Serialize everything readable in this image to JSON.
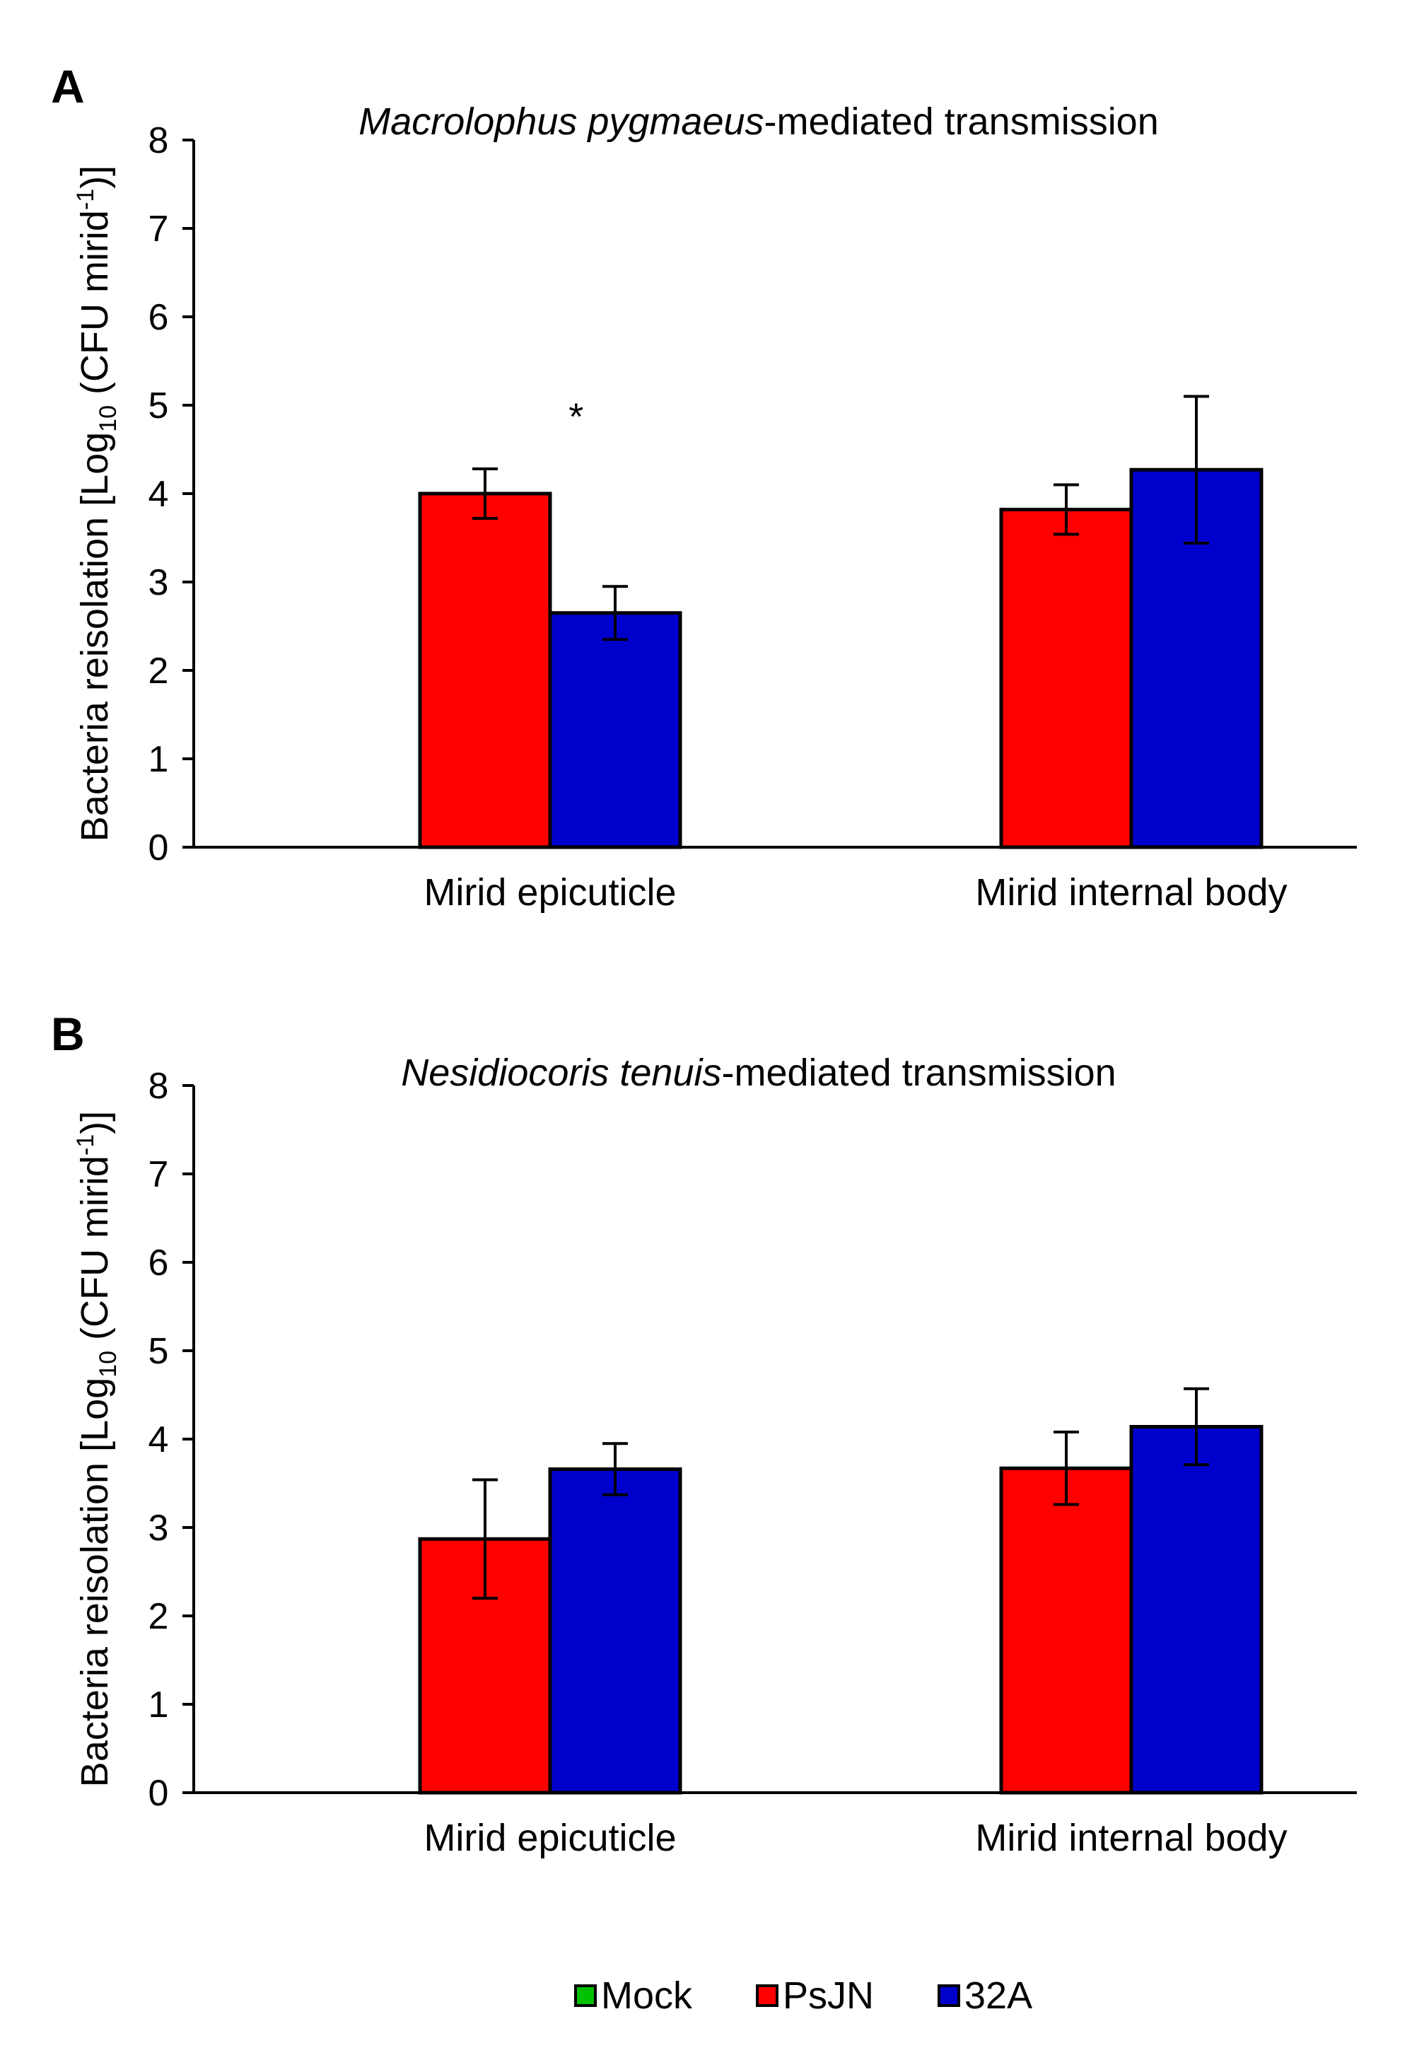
{
  "chart_data": [
    {
      "type": "bar",
      "panel_label": "A",
      "title_italic": "Macrolophus pygmaeus",
      "title_rest": "-mediated transmission",
      "ylabel_main": "Bacteria reisolation [Log",
      "ylabel_sub": "10",
      "ylabel_mid": " (CFU mirid",
      "ylabel_sup": "-1",
      "ylabel_end": ")]",
      "ylim": [
        0,
        8
      ],
      "yticks": [
        "0",
        "1",
        "2",
        "3",
        "4",
        "5",
        "6",
        "7",
        "8"
      ],
      "categories": [
        "Mirid epicuticle",
        "Mirid internal body"
      ],
      "series": [
        {
          "name": "Mock",
          "values": [
            0,
            0
          ],
          "errors": [
            0,
            0
          ]
        },
        {
          "name": "PsJN",
          "values": [
            4.0,
            3.82
          ],
          "errors": [
            0.28,
            0.28
          ]
        },
        {
          "name": "32A",
          "values": [
            2.65,
            4.27
          ],
          "errors": [
            0.3,
            0.83
          ]
        }
      ],
      "annotations": [
        {
          "text": "*",
          "category": "Mirid epicuticle",
          "y": 4.95
        }
      ]
    },
    {
      "type": "bar",
      "panel_label": "B",
      "title_italic": "Nesidiocoris tenuis",
      "title_rest": "-mediated transmission",
      "ylabel_main": "Bacteria reisolation [Log",
      "ylabel_sub": "10",
      "ylabel_mid": " (CFU mirid",
      "ylabel_sup": "-1",
      "ylabel_end": ")]",
      "ylim": [
        0,
        8
      ],
      "yticks": [
        "0",
        "1",
        "2",
        "3",
        "4",
        "5",
        "6",
        "7",
        "8"
      ],
      "categories": [
        "Mirid epicuticle",
        "Mirid internal body"
      ],
      "series": [
        {
          "name": "Mock",
          "values": [
            0,
            0
          ],
          "errors": [
            0,
            0
          ]
        },
        {
          "name": "PsJN",
          "values": [
            2.87,
            3.67
          ],
          "errors": [
            0.67,
            0.41
          ]
        },
        {
          "name": "32A",
          "values": [
            3.66,
            4.14
          ],
          "errors": [
            0.29,
            0.43
          ]
        }
      ],
      "annotations": []
    }
  ],
  "legend": {
    "placement": "bottom-center",
    "items": [
      {
        "label": "Mock",
        "color": "#00c000"
      },
      {
        "label": "PsJN",
        "color": "#ff0000"
      },
      {
        "label": "32A",
        "color": "#0000cc"
      }
    ]
  }
}
